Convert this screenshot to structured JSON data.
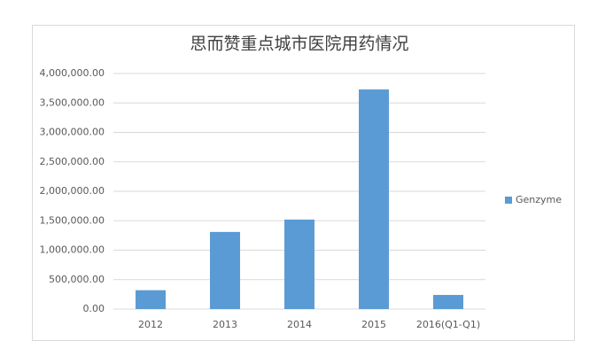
{
  "chart_data": {
    "type": "bar",
    "title": "思而赞重点城市医院用药情况",
    "categories": [
      "2012",
      "2013",
      "2014",
      "2015",
      "2016(Q1-Q1)"
    ],
    "series": [
      {
        "name": "Genzyme",
        "color": "#5b9bd5",
        "values": [
          320000,
          1310000,
          1520000,
          3730000,
          240000
        ]
      }
    ],
    "ylim": [
      0,
      4000000
    ],
    "yticks": [
      {
        "value": 0,
        "label": "0.00"
      },
      {
        "value": 500000,
        "label": "500,000.00"
      },
      {
        "value": 1000000,
        "label": "1,000,000.00"
      },
      {
        "value": 1500000,
        "label": "1,500,000.00"
      },
      {
        "value": 2000000,
        "label": "2,000,000.00"
      },
      {
        "value": 2500000,
        "label": "2,500,000.00"
      },
      {
        "value": 3000000,
        "label": "3,000,000.00"
      },
      {
        "value": 3500000,
        "label": "3,500,000.00"
      },
      {
        "value": 4000000,
        "label": "4,000,000.00"
      }
    ],
    "grid": true,
    "legend": "right"
  }
}
